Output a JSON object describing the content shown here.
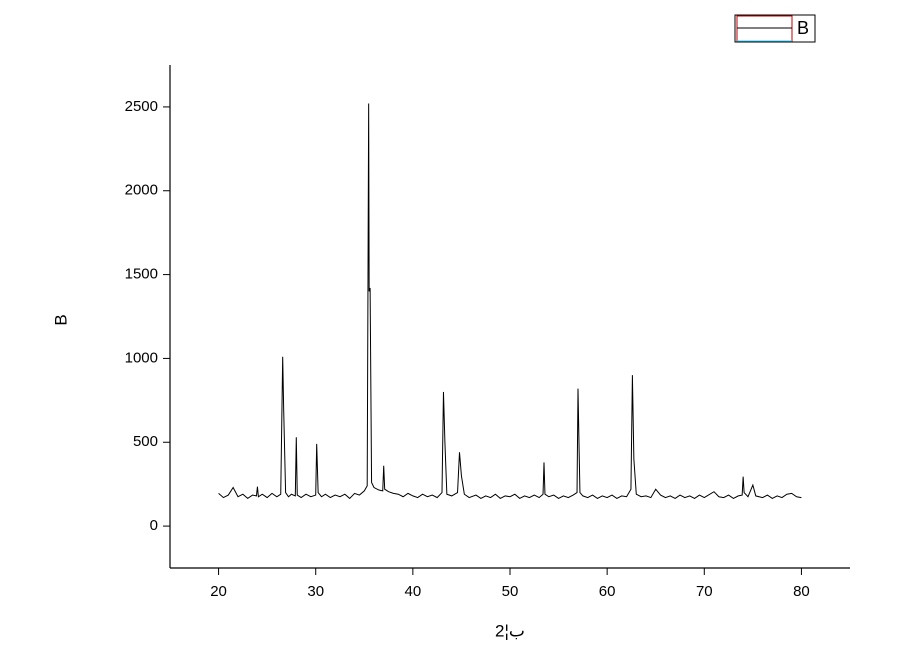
{
  "chart_data": {
    "type": "line",
    "x_label": "2¦ب",
    "y_label": "B",
    "x": [
      20,
      20.5,
      21,
      21.5,
      22,
      22.5,
      23,
      23.5,
      23.9,
      24,
      24.1,
      24.5,
      25,
      25.5,
      26,
      26.4,
      26.6,
      26.7,
      26.9,
      27.2,
      27.5,
      27.9,
      28,
      28.1,
      28.5,
      29,
      29.5,
      30,
      30.1,
      30.25,
      30.6,
      31,
      31.5,
      32,
      32.5,
      33,
      33.5,
      34,
      34.5,
      35,
      35.3,
      35.45,
      35.5,
      35.6,
      35.75,
      36,
      36.5,
      36.9,
      37,
      37.1,
      37.5,
      38,
      38.5,
      39,
      39.5,
      40,
      40.5,
      41,
      41.5,
      42,
      42.5,
      43,
      43.15,
      43.3,
      43.5,
      44,
      44.6,
      44.8,
      45,
      45.3,
      45.8,
      46.5,
      47,
      47.5,
      48,
      48.5,
      49,
      49.5,
      50,
      50.5,
      51,
      51.5,
      52,
      52.5,
      53,
      53.4,
      53.5,
      53.6,
      54,
      54.5,
      55,
      55.5,
      56,
      56.5,
      56.9,
      57,
      57.1,
      57.2,
      57.5,
      58,
      58.5,
      59,
      59.5,
      60,
      60.5,
      61,
      61.5,
      62,
      62.45,
      62.6,
      62.75,
      63,
      63.5,
      64,
      64.5,
      65,
      65.5,
      66,
      66.5,
      67,
      67.5,
      68,
      68.5,
      69,
      69.5,
      70,
      71,
      71.5,
      72,
      72.5,
      73,
      73.5,
      73.9,
      74,
      74.1,
      74.5,
      75,
      75.3,
      76,
      76.5,
      77,
      77.5,
      78,
      78.5,
      79,
      79.5,
      80
    ],
    "series": [
      {
        "name": "B",
        "color": "#000000",
        "values": [
          195,
          170,
          185,
          230,
          175,
          190,
          165,
          185,
          180,
          235,
          175,
          190,
          170,
          195,
          175,
          190,
          1010,
          700,
          200,
          175,
          190,
          180,
          530,
          185,
          170,
          190,
          175,
          185,
          490,
          200,
          175,
          190,
          170,
          185,
          175,
          190,
          165,
          195,
          185,
          210,
          240,
          2520,
          1400,
          1420,
          260,
          230,
          215,
          210,
          360,
          220,
          205,
          195,
          190,
          175,
          195,
          180,
          170,
          190,
          175,
          185,
          170,
          200,
          800,
          500,
          190,
          180,
          200,
          440,
          300,
          190,
          170,
          185,
          165,
          180,
          170,
          190,
          165,
          180,
          175,
          190,
          165,
          180,
          170,
          185,
          170,
          190,
          380,
          190,
          175,
          185,
          165,
          180,
          170,
          185,
          200,
          820,
          500,
          200,
          180,
          170,
          185,
          165,
          180,
          170,
          185,
          165,
          180,
          175,
          220,
          900,
          400,
          190,
          175,
          180,
          170,
          220,
          185,
          170,
          180,
          165,
          185,
          170,
          180,
          165,
          185,
          170,
          205,
          175,
          170,
          185,
          165,
          180,
          185,
          295,
          200,
          175,
          245,
          180,
          170,
          185,
          165,
          180,
          170,
          190,
          195,
          175,
          170
        ]
      }
    ],
    "xlim": [
      15,
      85
    ],
    "xticks": [
      20,
      30,
      40,
      50,
      60,
      70,
      80
    ],
    "ylim": [
      -250,
      2750
    ],
    "yticks": [
      0,
      500,
      1000,
      1500,
      2000,
      2500
    ],
    "legend": "top-right"
  }
}
